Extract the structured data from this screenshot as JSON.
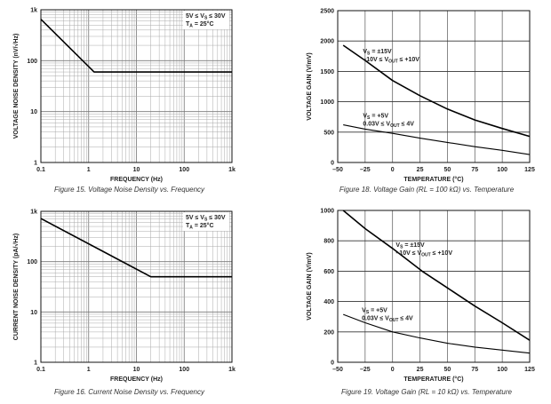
{
  "chart_data": [
    {
      "type": "line",
      "caption": "Figure 15. Voltage Noise Density vs. Frequency",
      "xlabel": "FREQUENCY (Hz)",
      "ylabel": "VOLTAGE NOISE DENSITY (nV/√Hz)",
      "xscale": "log",
      "yscale": "log",
      "xlim": [
        0.1,
        1000
      ],
      "ylim": [
        1,
        1000
      ],
      "xticks": [
        0.1,
        1,
        10,
        100,
        1000
      ],
      "xtick_labels": [
        "0.1",
        "1",
        "10",
        "100",
        "1k"
      ],
      "yticks": [
        1,
        10,
        100,
        1000
      ],
      "ytick_labels": [
        "1",
        "10",
        "100",
        "1k"
      ],
      "grid": true,
      "annotations": [
        {
          "lines": [
            [
              [
                "5V ≤ V",
                ""
              ],
              [
                "S",
                "sub"
              ],
              [
                " ≤ 30V",
                ""
              ]
            ],
            [
              [
                "T",
                ""
              ],
              [
                "A",
                "sub"
              ],
              [
                " = 25°C",
                ""
              ]
            ]
          ],
          "position": "top-right"
        }
      ],
      "series": [
        {
          "x": [
            0.1,
            1.3,
            1000
          ],
          "y": [
            650,
            60,
            60
          ]
        }
      ]
    },
    {
      "type": "line",
      "caption": "Figure 18. Voltage Gain (RL = 100 kΩ) vs. Temperature",
      "xlabel": "TEMPERATURE (°C)",
      "ylabel": "VOLTAGE GAIN (V/mV)",
      "xscale": "linear",
      "yscale": "linear",
      "xlim": [
        -50,
        125
      ],
      "ylim": [
        0,
        2500
      ],
      "xticks": [
        -50,
        -25,
        0,
        25,
        50,
        75,
        100,
        125
      ],
      "xtick_labels": [
        "–50",
        "–25",
        "0",
        "25",
        "50",
        "75",
        "100",
        "125"
      ],
      "yticks": [
        0,
        500,
        1000,
        1500,
        2000,
        2500
      ],
      "ytick_labels": [
        "0",
        "500",
        "1000",
        "1500",
        "2000",
        "2500"
      ],
      "grid": true,
      "annotations": [
        {
          "lines": [
            [
              [
                "V",
                ""
              ],
              [
                "S",
                "sub"
              ],
              [
                " = ±15V",
                ""
              ]
            ],
            [
              [
                "–10V ≤ V",
                ""
              ],
              [
                "OUT",
                "sub"
              ],
              [
                " ≤ +10V",
                ""
              ]
            ]
          ],
          "at": [
            -27,
            1800
          ]
        },
        {
          "lines": [
            [
              [
                "V",
                ""
              ],
              [
                "S",
                "sub"
              ],
              [
                " = +5V",
                ""
              ]
            ],
            [
              [
                "0.03V ≤ V",
                ""
              ],
              [
                "OUT",
                "sub"
              ],
              [
                " ≤ 4V",
                ""
              ]
            ]
          ],
          "at": [
            -27,
            740
          ]
        }
      ],
      "series": [
        {
          "x": [
            -45,
            -25,
            0,
            25,
            50,
            75,
            100,
            125
          ],
          "y": [
            1930,
            1680,
            1350,
            1100,
            880,
            700,
            560,
            430
          ]
        },
        {
          "x": [
            -45,
            -25,
            0,
            25,
            50,
            75,
            100,
            125
          ],
          "y": [
            620,
            550,
            480,
            400,
            330,
            260,
            200,
            130
          ]
        }
      ]
    },
    {
      "type": "line",
      "caption": "Figure 16. Current Noise Density vs. Frequency",
      "xlabel": "FREQUENCY (Hz)",
      "ylabel": "CURRENT NOISE DENSITY (pA/√Hz)",
      "xscale": "log",
      "yscale": "log",
      "xlim": [
        0.1,
        1000
      ],
      "ylim": [
        1,
        1000
      ],
      "xticks": [
        0.1,
        1,
        10,
        100,
        1000
      ],
      "xtick_labels": [
        "0.1",
        "1",
        "10",
        "100",
        "1k"
      ],
      "yticks": [
        1,
        10,
        100,
        1000
      ],
      "ytick_labels": [
        "1",
        "10",
        "100",
        "1k"
      ],
      "grid": true,
      "annotations": [
        {
          "lines": [
            [
              [
                "5V ≤ V",
                ""
              ],
              [
                "S",
                "sub"
              ],
              [
                " ≤ 30V",
                ""
              ]
            ],
            [
              [
                "T",
                ""
              ],
              [
                "A",
                "sub"
              ],
              [
                " = 25°C",
                ""
              ]
            ]
          ],
          "position": "top-right"
        }
      ],
      "series": [
        {
          "x": [
            0.1,
            20,
            1000
          ],
          "y": [
            720,
            50,
            50
          ]
        }
      ]
    },
    {
      "type": "line",
      "caption": "Figure 19. Voltage Gain (RL = 10 kΩ) vs. Temperature",
      "xlabel": "TEMPERATURE (°C)",
      "ylabel": "VOLTAGE GAIN (V/mV)",
      "xscale": "linear",
      "yscale": "linear",
      "xlim": [
        -50,
        125
      ],
      "ylim": [
        0,
        1000
      ],
      "xticks": [
        -50,
        -25,
        0,
        25,
        50,
        75,
        100,
        125
      ],
      "xtick_labels": [
        "–50",
        "–25",
        "0",
        "25",
        "50",
        "75",
        "100",
        "125"
      ],
      "yticks": [
        0,
        200,
        400,
        600,
        800,
        1000
      ],
      "ytick_labels": [
        "0",
        "200",
        "400",
        "600",
        "800",
        "1000"
      ],
      "grid": true,
      "annotations": [
        {
          "lines": [
            [
              [
                "V",
                ""
              ],
              [
                "S",
                "sub"
              ],
              [
                " = ±15V",
                ""
              ]
            ],
            [
              [
                "–10V ≤ V",
                ""
              ],
              [
                "OUT",
                "sub"
              ],
              [
                " ≤ +10V",
                ""
              ]
            ]
          ],
          "at": [
            3,
            760
          ]
        },
        {
          "lines": [
            [
              [
                "V",
                ""
              ],
              [
                "S",
                "sub"
              ],
              [
                " = +5V",
                ""
              ]
            ],
            [
              [
                "0.03V ≤ V",
                ""
              ],
              [
                "OUT",
                "sub"
              ],
              [
                " ≤ 4V",
                ""
              ]
            ]
          ],
          "at": [
            -28,
            330
          ]
        }
      ],
      "series": [
        {
          "x": [
            -45,
            -25,
            0,
            27,
            50,
            75,
            100,
            125
          ],
          "y": [
            1000,
            880,
            750,
            600,
            490,
            370,
            260,
            145
          ]
        },
        {
          "x": [
            -45,
            -25,
            0,
            25,
            50,
            75,
            100,
            125
          ],
          "y": [
            315,
            260,
            200,
            160,
            125,
            100,
            80,
            60
          ]
        }
      ]
    }
  ]
}
